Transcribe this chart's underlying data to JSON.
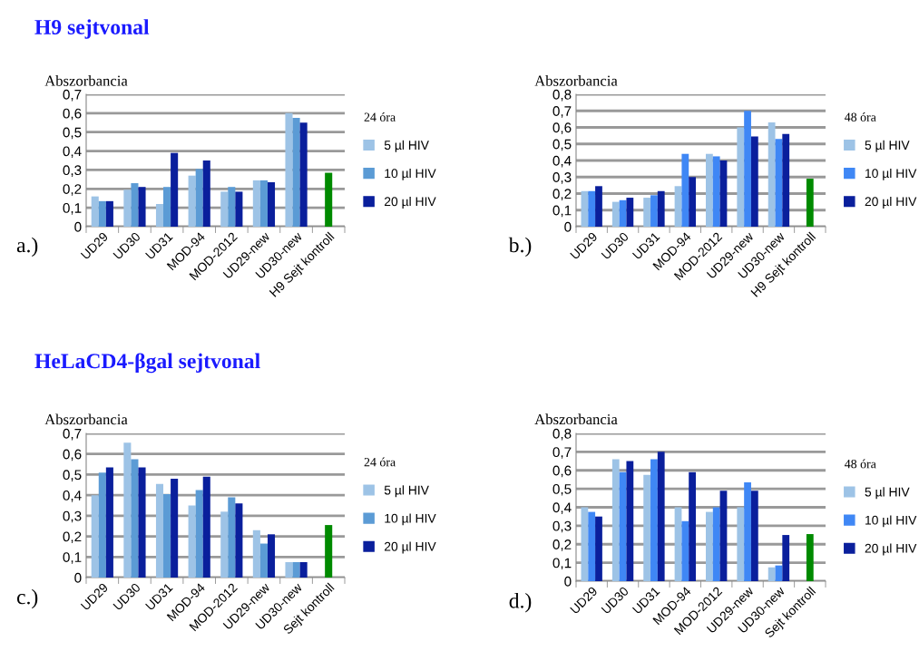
{
  "chart_data": [
    {
      "type": "bar",
      "title": "H9 sejtvonal",
      "ylabel": "Abszorbancia",
      "legend_title": "24 óra",
      "annotations": [
        "a.)"
      ],
      "categories": [
        "UD29",
        "UD30",
        "UD31",
        "MOD-94",
        "MOD-2012",
        "UD29-new",
        "UD30-new",
        "H9 Sejt kontroll"
      ],
      "series": [
        {
          "name": "5 µl HIV",
          "color": "#9dc3e6",
          "values": [
            0.16,
            0.195,
            0.12,
            0.27,
            0.185,
            0.245,
            0.6,
            null
          ]
        },
        {
          "name": "10 µl HIV",
          "color": "#5b9bd5",
          "values": [
            0.135,
            0.23,
            0.21,
            0.305,
            0.21,
            0.245,
            0.575,
            null
          ]
        },
        {
          "name": "20 µl HIV",
          "color": "#0a1f9c",
          "values": [
            0.135,
            0.21,
            0.39,
            0.35,
            0.185,
            0.235,
            0.55,
            null
          ]
        },
        {
          "color": "#008a00",
          "values": [
            null,
            null,
            null,
            null,
            null,
            null,
            null,
            0.285
          ]
        }
      ],
      "ylim": [
        0,
        0.7
      ],
      "yticks": [
        0,
        {
          "value": 0.1,
          "label": "0,1"
        },
        {
          "value": 0.2,
          "label": "0,2"
        },
        {
          "value": 0.3,
          "label": "0,3"
        },
        {
          "value": 0.4,
          "label": "0,4"
        },
        {
          "value": 0.5,
          "label": "0,5"
        },
        {
          "value": 0.6,
          "label": "0,6"
        },
        {
          "value": 0.7,
          "label": "0,7"
        }
      ],
      "grid": "y",
      "legend": "right"
    },
    {
      "type": "bar",
      "ylabel": "Abszorbancia",
      "legend_title": "48 óra",
      "annotations": [
        "b.)"
      ],
      "categories": [
        "UD29",
        "UD30",
        "UD31",
        "MOD-94",
        "MOD-2012",
        "UD29-new",
        "UD30-new",
        "H9 Sejt kontroll"
      ],
      "series": [
        {
          "name": "5 µl HIV",
          "color": "#9dc3e6",
          "values": [
            0.215,
            0.15,
            0.175,
            0.245,
            0.44,
            0.6,
            0.63,
            null
          ]
        },
        {
          "name": "10 µl HIV",
          "color": "#3f87f5",
          "values": [
            0.215,
            0.16,
            0.19,
            0.44,
            0.425,
            0.7,
            0.53,
            null
          ]
        },
        {
          "name": "20 µl HIV",
          "color": "#0a1f9c",
          "values": [
            0.245,
            0.175,
            0.215,
            0.3,
            0.4,
            0.545,
            0.56,
            null
          ]
        },
        {
          "color": "#008a00",
          "values": [
            null,
            null,
            null,
            null,
            null,
            null,
            null,
            0.29
          ]
        }
      ],
      "ylim": [
        0,
        0.8
      ],
      "yticks": [
        0,
        {
          "value": 0.1,
          "label": "0,1"
        },
        {
          "value": 0.2,
          "label": "0,2"
        },
        {
          "value": 0.3,
          "label": "0,3"
        },
        {
          "value": 0.4,
          "label": "0,4"
        },
        {
          "value": 0.5,
          "label": "0,5"
        },
        {
          "value": 0.6,
          "label": "0,6"
        },
        {
          "value": 0.7,
          "label": "0,7"
        },
        {
          "value": 0.8,
          "label": "0,8"
        }
      ],
      "grid": "y",
      "legend": "right"
    },
    {
      "type": "bar",
      "title": "HeLaCD4-βgal sejtvonal",
      "ylabel": "Abszorbancia",
      "legend_title": "24 óra",
      "annotations": [
        "c.)"
      ],
      "categories": [
        "UD29",
        "UD30",
        "UD31",
        "MOD-94",
        "MOD-2012",
        "UD29-new",
        "UD30-new",
        "Sejt kontroll"
      ],
      "series": [
        {
          "name": "5 µl HIV",
          "color": "#9dc3e6",
          "values": [
            0.4,
            0.655,
            0.455,
            0.35,
            0.32,
            0.23,
            0.075,
            null
          ]
        },
        {
          "name": "10 µl HIV",
          "color": "#5b9bd5",
          "values": [
            0.51,
            0.575,
            0.405,
            0.425,
            0.39,
            0.165,
            0.075,
            null
          ]
        },
        {
          "name": "20 µl HIV",
          "color": "#0a1f9c",
          "values": [
            0.535,
            0.535,
            0.48,
            0.49,
            0.36,
            0.21,
            0.075,
            null
          ]
        },
        {
          "color": "#008a00",
          "values": [
            null,
            null,
            null,
            null,
            null,
            null,
            null,
            0.255
          ]
        }
      ],
      "ylim": [
        0,
        0.7
      ],
      "yticks": [
        0,
        {
          "value": 0.1,
          "label": "0,1"
        },
        {
          "value": 0.2,
          "label": "0,2"
        },
        {
          "value": 0.3,
          "label": "0,3"
        },
        {
          "value": 0.4,
          "label": "0,4"
        },
        {
          "value": 0.5,
          "label": "0,5"
        },
        {
          "value": 0.6,
          "label": "0,6"
        },
        {
          "value": 0.7,
          "label": "0,7"
        }
      ],
      "grid": "y",
      "legend": "right"
    },
    {
      "type": "bar",
      "ylabel": "Abszorbancia",
      "legend_title": "48 óra",
      "annotations": [
        "d.)"
      ],
      "categories": [
        "UD29",
        "UD30",
        "UD31",
        "MOD-94",
        "MOD-2012",
        "UD29-new",
        "UD30-new",
        "Sejt kontroll"
      ],
      "series": [
        {
          "name": "5 µl HIV",
          "color": "#9dc3e6",
          "values": [
            0.4,
            0.66,
            0.575,
            0.4,
            0.375,
            0.4,
            0.075,
            null
          ]
        },
        {
          "name": "10 µl HIV",
          "color": "#3f87f5",
          "values": [
            0.375,
            0.59,
            0.66,
            0.325,
            0.4,
            0.535,
            0.085,
            null
          ]
        },
        {
          "name": "20 µl HIV",
          "color": "#0a1f9c",
          "values": [
            0.35,
            0.65,
            0.7,
            0.59,
            0.49,
            0.49,
            0.25,
            null
          ]
        },
        {
          "color": "#008a00",
          "values": [
            null,
            null,
            null,
            null,
            null,
            null,
            null,
            0.255
          ]
        }
      ],
      "ylim": [
        0,
        0.8
      ],
      "yticks": [
        0,
        {
          "value": 0.1,
          "label": "0,1"
        },
        {
          "value": 0.2,
          "label": "0,2"
        },
        {
          "value": 0.3,
          "label": "0,3"
        },
        {
          "value": 0.4,
          "label": "0,4"
        },
        {
          "value": 0.5,
          "label": "0,5"
        },
        {
          "value": 0.6,
          "label": "0,6"
        },
        {
          "value": 0.7,
          "label": "0,7"
        },
        {
          "value": 0.8,
          "label": "0,8"
        }
      ],
      "grid": "y",
      "legend": "right"
    }
  ]
}
